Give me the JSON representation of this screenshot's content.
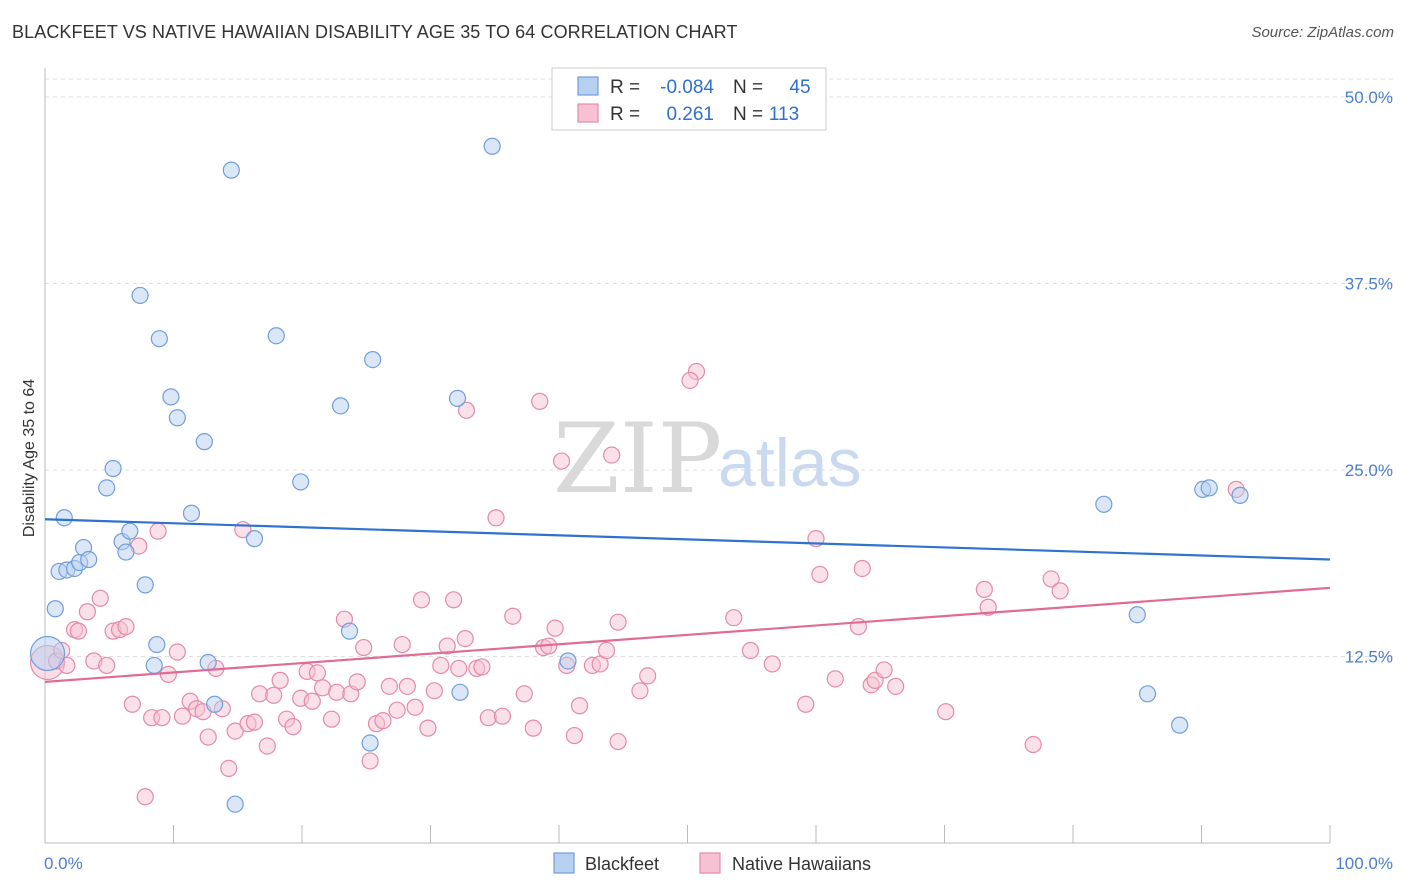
{
  "title": "BLACKFEET VS NATIVE HAWAIIAN DISABILITY AGE 35 TO 64 CORRELATION CHART",
  "source": "Source: ZipAtlas.com",
  "watermark": {
    "zip": "ZIP",
    "atlas": "atlas"
  },
  "colors": {
    "blackfeet_fill": "#b8d0f0",
    "blackfeet_stroke": "#6f9fdc",
    "blackfeet_line": "#2f72d0",
    "hawaiian_fill": "#f6c1d2",
    "hawaiian_stroke": "#e58aa8",
    "hawaiian_line": "#e06c95",
    "tick_label": "#4a7fcf",
    "grid": "#dddddd"
  },
  "legend": {
    "r_label": "R =",
    "n_label": "N =",
    "rows": [
      {
        "r": "-0.084",
        "n": "45"
      },
      {
        "r": "0.261",
        "n": "113"
      }
    ]
  },
  "chart_data": {
    "type": "scatter",
    "title": "BLACKFEET VS NATIVE HAWAIIAN DISABILITY AGE 35 TO 64 CORRELATION CHART",
    "xlabel": "",
    "ylabel": "Disability Age 35 to 64",
    "xlim": [
      0,
      100
    ],
    "ylim": [
      0,
      51
    ],
    "x_tick_labels": [
      "0.0%",
      "100.0%"
    ],
    "y_ticks": [
      12.5,
      25.0,
      37.5,
      50.0
    ],
    "y_tick_labels": [
      "12.5%",
      "25.0%",
      "37.5%",
      "50.0%"
    ],
    "grid": true,
    "legend_position": "top-center",
    "series": [
      {
        "name": "Blackfeet",
        "r": -0.084,
        "n": 45,
        "trend": {
          "x": [
            0,
            100
          ],
          "y": [
            21.7,
            19.0
          ]
        },
        "points": [
          [
            0.2,
            12.7
          ],
          [
            0.8,
            15.7
          ],
          [
            1.1,
            18.2
          ],
          [
            1.5,
            21.8
          ],
          [
            1.7,
            18.3
          ],
          [
            2.3,
            18.4
          ],
          [
            2.7,
            18.8
          ],
          [
            3.0,
            19.8
          ],
          [
            3.4,
            19.0
          ],
          [
            4.8,
            23.8
          ],
          [
            5.3,
            25.1
          ],
          [
            6.0,
            20.2
          ],
          [
            6.3,
            19.5
          ],
          [
            6.6,
            20.9
          ],
          [
            7.4,
            36.7
          ],
          [
            7.8,
            17.3
          ],
          [
            8.7,
            13.3
          ],
          [
            8.9,
            33.8
          ],
          [
            8.5,
            11.9
          ],
          [
            9.8,
            29.9
          ],
          [
            10.3,
            28.5
          ],
          [
            11.4,
            22.1
          ],
          [
            12.4,
            26.9
          ],
          [
            12.7,
            12.1
          ],
          [
            13.2,
            9.3
          ],
          [
            14.5,
            45.1
          ],
          [
            14.8,
            2.6
          ],
          [
            16.3,
            20.4
          ],
          [
            18.0,
            34.0
          ],
          [
            19.9,
            24.2
          ],
          [
            23.0,
            29.3
          ],
          [
            23.7,
            14.2
          ],
          [
            25.3,
            6.7
          ],
          [
            25.5,
            32.4
          ],
          [
            32.1,
            29.8
          ],
          [
            32.3,
            10.1
          ],
          [
            34.8,
            46.7
          ],
          [
            40.7,
            12.2
          ],
          [
            82.4,
            22.7
          ],
          [
            85.0,
            15.3
          ],
          [
            85.8,
            10.0
          ],
          [
            88.3,
            7.9
          ],
          [
            90.1,
            23.7
          ],
          [
            90.6,
            23.8
          ],
          [
            93.0,
            23.3
          ]
        ]
      },
      {
        "name": "Native Hawaiians",
        "r": 0.261,
        "n": 113,
        "trend": {
          "x": [
            0,
            100
          ],
          "y": [
            10.8,
            17.1
          ]
        },
        "points": [
          [
            0.2,
            12.1
          ],
          [
            0.9,
            12.2
          ],
          [
            1.3,
            12.9
          ],
          [
            1.7,
            11.9
          ],
          [
            2.3,
            14.3
          ],
          [
            2.6,
            14.2
          ],
          [
            3.3,
            15.5
          ],
          [
            3.8,
            12.2
          ],
          [
            4.3,
            16.4
          ],
          [
            4.8,
            11.9
          ],
          [
            5.3,
            14.2
          ],
          [
            5.8,
            14.3
          ],
          [
            6.3,
            14.5
          ],
          [
            6.8,
            9.3
          ],
          [
            7.3,
            19.9
          ],
          [
            7.8,
            3.1
          ],
          [
            8.3,
            8.4
          ],
          [
            8.8,
            20.9
          ],
          [
            9.1,
            8.4
          ],
          [
            9.6,
            11.3
          ],
          [
            10.3,
            12.8
          ],
          [
            10.7,
            8.5
          ],
          [
            11.3,
            9.5
          ],
          [
            11.8,
            9.0
          ],
          [
            12.3,
            8.8
          ],
          [
            12.7,
            7.1
          ],
          [
            13.3,
            11.7
          ],
          [
            13.8,
            9.0
          ],
          [
            14.3,
            5.0
          ],
          [
            14.8,
            7.5
          ],
          [
            15.4,
            21.0
          ],
          [
            15.8,
            8.0
          ],
          [
            16.3,
            8.1
          ],
          [
            16.7,
            10.0
          ],
          [
            17.3,
            6.5
          ],
          [
            17.8,
            9.9
          ],
          [
            18.3,
            10.9
          ],
          [
            18.8,
            8.3
          ],
          [
            19.3,
            7.8
          ],
          [
            19.9,
            9.7
          ],
          [
            20.4,
            11.5
          ],
          [
            20.8,
            9.5
          ],
          [
            21.2,
            11.4
          ],
          [
            21.6,
            10.4
          ],
          [
            22.3,
            8.3
          ],
          [
            22.7,
            10.1
          ],
          [
            23.3,
            15.0
          ],
          [
            23.8,
            10.0
          ],
          [
            24.3,
            10.8
          ],
          [
            24.8,
            13.1
          ],
          [
            25.3,
            5.5
          ],
          [
            25.8,
            8.0
          ],
          [
            26.3,
            8.2
          ],
          [
            26.8,
            10.5
          ],
          [
            27.4,
            8.9
          ],
          [
            27.8,
            13.3
          ],
          [
            28.2,
            10.5
          ],
          [
            28.8,
            9.1
          ],
          [
            29.3,
            16.3
          ],
          [
            29.8,
            7.7
          ],
          [
            30.3,
            10.2
          ],
          [
            30.8,
            11.9
          ],
          [
            31.3,
            13.2
          ],
          [
            31.8,
            16.3
          ],
          [
            32.2,
            11.7
          ],
          [
            32.7,
            13.7
          ],
          [
            32.8,
            29.0
          ],
          [
            33.6,
            11.7
          ],
          [
            34.0,
            11.8
          ],
          [
            34.5,
            8.4
          ],
          [
            35.1,
            21.8
          ],
          [
            35.6,
            8.5
          ],
          [
            36.4,
            15.2
          ],
          [
            37.3,
            10.0
          ],
          [
            38.0,
            7.7
          ],
          [
            38.5,
            29.6
          ],
          [
            38.8,
            13.1
          ],
          [
            39.2,
            13.2
          ],
          [
            39.7,
            14.4
          ],
          [
            40.6,
            11.9
          ],
          [
            40.2,
            25.6
          ],
          [
            41.2,
            7.2
          ],
          [
            41.6,
            9.2
          ],
          [
            42.6,
            11.9
          ],
          [
            43.2,
            12.0
          ],
          [
            43.7,
            12.9
          ],
          [
            44.1,
            26.0
          ],
          [
            44.6,
            14.8
          ],
          [
            44.6,
            6.8
          ],
          [
            46.3,
            10.2
          ],
          [
            46.9,
            11.2
          ],
          [
            50.7,
            31.6
          ],
          [
            50.2,
            31.0
          ],
          [
            53.6,
            15.1
          ],
          [
            54.9,
            12.9
          ],
          [
            56.6,
            12.0
          ],
          [
            59.2,
            9.3
          ],
          [
            60.0,
            20.4
          ],
          [
            60.3,
            18.0
          ],
          [
            61.5,
            11.0
          ],
          [
            63.3,
            14.5
          ],
          [
            63.6,
            18.4
          ],
          [
            64.3,
            10.6
          ],
          [
            64.6,
            10.9
          ],
          [
            65.3,
            11.6
          ],
          [
            66.2,
            10.5
          ],
          [
            70.1,
            8.8
          ],
          [
            73.1,
            17.0
          ],
          [
            73.4,
            15.8
          ],
          [
            76.9,
            6.6
          ],
          [
            78.3,
            17.7
          ],
          [
            79.0,
            16.9
          ],
          [
            92.7,
            23.7
          ]
        ]
      }
    ]
  },
  "bottom_legend": [
    "Blackfeet",
    "Native Hawaiians"
  ]
}
